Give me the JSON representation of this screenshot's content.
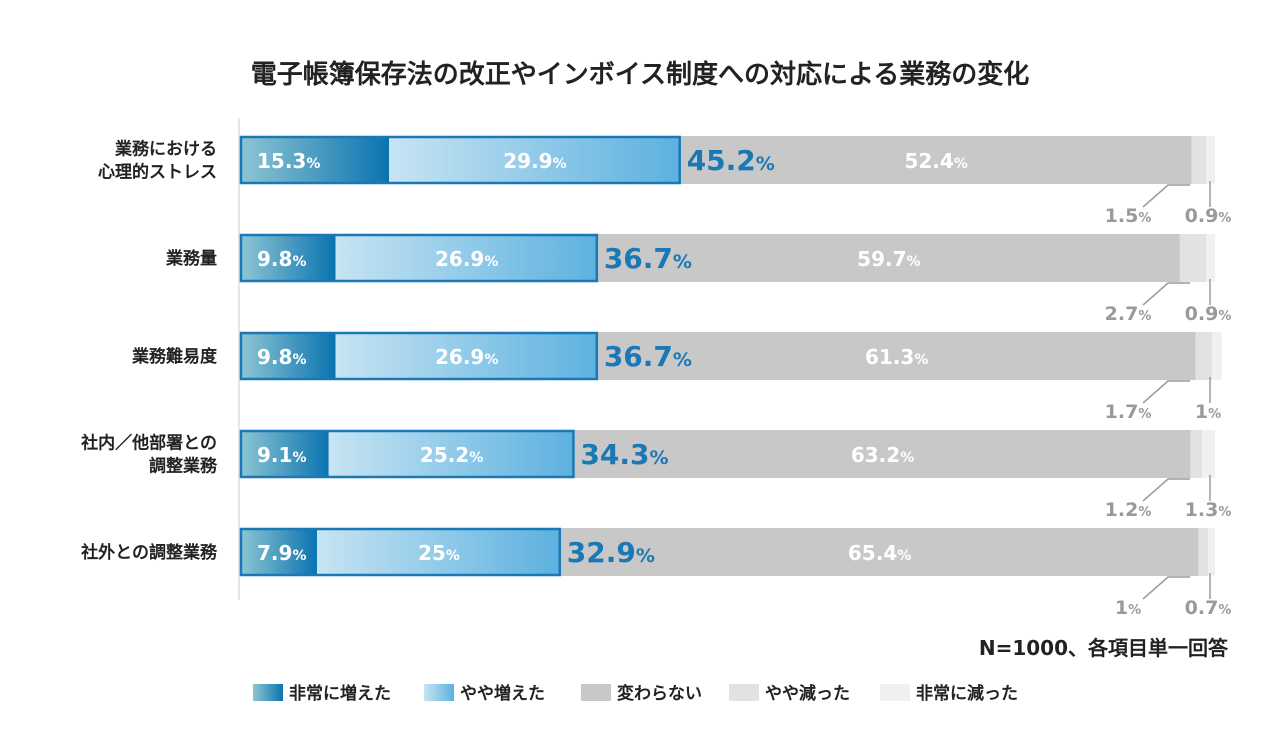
{
  "chart_data": {
    "type": "bar",
    "stacked": true,
    "orientation": "horizontal",
    "title": "電子帳簿保存法の改正やインボイス制度への対応による業務の変化",
    "note": "N=1000、各項目単一回答",
    "unit": "%",
    "categories": [
      [
        "業務における",
        "心理的ストレス"
      ],
      [
        "業務量"
      ],
      [
        "業務難易度"
      ],
      [
        "社内／他部署との",
        "調整業務"
      ],
      [
        "社外との調整業務"
      ]
    ],
    "series": [
      {
        "name": "非常に増えた",
        "values": [
          15.3,
          9.8,
          9.8,
          9.1,
          7.9
        ],
        "labels": [
          "15.3",
          "9.8",
          "9.8",
          "9.1",
          "7.9"
        ]
      },
      {
        "name": "やや増えた",
        "values": [
          29.9,
          26.9,
          26.9,
          25.2,
          25
        ],
        "labels": [
          "29.9",
          "26.9",
          "26.9",
          "25.2",
          "25"
        ]
      },
      {
        "name": "変わらない",
        "values": [
          52.4,
          59.7,
          61.3,
          63.2,
          65.4
        ],
        "labels": [
          "52.4",
          "59.7",
          "61.3",
          "63.2",
          "65.4"
        ]
      },
      {
        "name": "やや減った",
        "values": [
          1.5,
          2.7,
          1.7,
          1.2,
          1
        ],
        "labels": [
          "1.5",
          "2.7",
          "1.7",
          "1.2",
          "1"
        ]
      },
      {
        "name": "非常に減った",
        "values": [
          0.9,
          0.9,
          1,
          1.3,
          0.7
        ],
        "labels": [
          "0.9",
          "0.9",
          "1",
          "1.3",
          "0.7"
        ]
      }
    ],
    "totals_increase": [
      "45.2",
      "36.7",
      "36.7",
      "34.3",
      "32.9"
    ],
    "colors": {
      "inc_high_start": "#8ec6d3",
      "inc_high_end": "#0b73b0",
      "inc_mid_start": "#c7e4f3",
      "inc_mid_end": "#5cb1df",
      "same": "#c8c8c8",
      "dec_mid": "#e2e2e2",
      "dec_high": "#f0f0f0",
      "outline": "#1a79b5",
      "total_text": "#1a79b5",
      "small_label": "#9a9a9a",
      "axis": "#cccccc",
      "title": "#222222"
    },
    "legend": "bottom"
  }
}
